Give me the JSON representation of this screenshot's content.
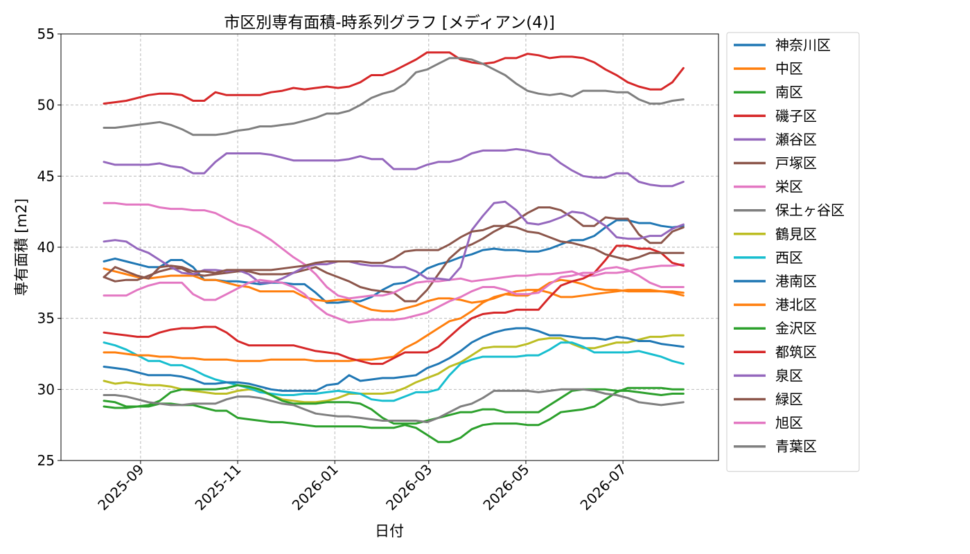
{
  "chart_data": {
    "type": "line",
    "title": "市区別専有面積-時系列グラフ [メディアン(4)]",
    "xlabel": "日付",
    "ylabel": "専有面積 [m2]",
    "ylim": [
      25,
      55
    ],
    "yticks": [
      25,
      30,
      35,
      40,
      45,
      50,
      55
    ],
    "xlim": [
      "2025-07-13",
      "2026-08-30"
    ],
    "xticks": [
      "2025-09",
      "2025-11",
      "2026-01",
      "2026-03",
      "2026-05",
      "2026-07"
    ],
    "grid": true,
    "legend_position": "outside-right",
    "x": [
      "2025-08-09",
      "2025-08-16",
      "2025-08-23",
      "2025-08-30",
      "2025-09-06",
      "2025-09-13",
      "2025-09-20",
      "2025-09-27",
      "2025-10-04",
      "2025-10-11",
      "2025-10-18",
      "2025-10-25",
      "2025-11-01",
      "2025-11-08",
      "2025-11-15",
      "2025-11-22",
      "2025-11-29",
      "2025-12-06",
      "2025-12-13",
      "2025-12-20",
      "2025-12-27",
      "2026-01-03",
      "2026-01-10",
      "2026-01-17",
      "2026-01-24",
      "2026-01-31",
      "2026-02-07",
      "2026-02-14",
      "2026-02-21",
      "2026-02-28",
      "2026-03-07",
      "2026-03-14",
      "2026-03-21",
      "2026-03-28",
      "2026-04-04",
      "2026-04-11",
      "2026-04-18",
      "2026-04-25",
      "2026-05-02",
      "2026-05-09",
      "2026-05-16",
      "2026-05-23",
      "2026-05-30",
      "2026-06-06",
      "2026-06-13",
      "2026-06-20",
      "2026-06-27",
      "2026-07-04",
      "2026-07-11",
      "2026-07-18",
      "2026-07-25",
      "2026-08-01",
      "2026-08-08"
    ],
    "series": [
      {
        "name": "神奈川区",
        "color": "#1f77b4",
        "values": [
          39.0,
          39.2,
          39.0,
          38.8,
          38.6,
          38.6,
          39.1,
          39.1,
          38.6,
          37.7,
          37.7,
          37.6,
          37.6,
          37.5,
          37.4,
          37.5,
          37.5,
          37.4,
          37.4,
          36.8,
          36.1,
          36.1,
          36.2,
          36.2,
          36.5,
          37.0,
          37.4,
          37.5,
          37.9,
          38.5,
          38.8,
          39.0,
          39.3,
          39.5,
          39.8,
          39.9,
          39.8,
          39.8,
          39.7,
          39.7,
          39.9,
          40.2,
          40.5,
          40.5,
          40.8,
          41.4,
          41.9,
          41.9,
          41.7,
          41.7,
          41.5,
          41.4,
          41.5
        ]
      },
      {
        "name": "中区",
        "color": "#ff7f0e",
        "values": [
          38.5,
          38.3,
          38.1,
          37.9,
          37.8,
          37.9,
          38.0,
          38.0,
          38.0,
          37.7,
          37.7,
          37.5,
          37.3,
          37.2,
          36.9,
          36.9,
          36.9,
          36.9,
          36.5,
          36.3,
          36.2,
          36.3,
          36.3,
          35.9,
          35.6,
          35.5,
          35.5,
          35.7,
          35.9,
          36.2,
          36.4,
          36.4,
          36.3,
          36.1,
          36.2,
          36.4,
          36.7,
          36.9,
          37.0,
          37.0,
          36.8,
          36.5,
          36.5,
          36.6,
          36.7,
          36.8,
          36.9,
          37.0,
          37.0,
          37.0,
          36.9,
          36.8,
          36.6
        ]
      },
      {
        "name": "南区",
        "color": "#2ca02c",
        "values": [
          29.2,
          29.1,
          28.8,
          28.8,
          28.8,
          29.0,
          29.0,
          28.9,
          28.9,
          28.7,
          28.5,
          28.5,
          28.0,
          27.9,
          27.8,
          27.7,
          27.7,
          27.6,
          27.5,
          27.4,
          27.4,
          27.4,
          27.4,
          27.4,
          27.3,
          27.3,
          27.3,
          27.5,
          27.3,
          26.8,
          26.3,
          26.3,
          26.6,
          27.2,
          27.5,
          27.6,
          27.6,
          27.6,
          27.5,
          27.5,
          27.9,
          28.4,
          28.5,
          28.6,
          28.8,
          29.3,
          29.8,
          30.1,
          30.1,
          30.1,
          30.1,
          30.0,
          30.0
        ]
      },
      {
        "name": "磯子区",
        "color": "#d62728",
        "values": [
          50.1,
          50.2,
          50.3,
          50.5,
          50.7,
          50.8,
          50.8,
          50.7,
          50.3,
          50.3,
          50.9,
          50.7,
          50.7,
          50.7,
          50.7,
          50.9,
          51.0,
          51.2,
          51.1,
          51.2,
          51.3,
          51.2,
          51.3,
          51.6,
          52.1,
          52.1,
          52.4,
          52.8,
          53.2,
          53.7,
          53.7,
          53.7,
          53.2,
          53.0,
          52.9,
          53.0,
          53.3,
          53.3,
          53.6,
          53.5,
          53.3,
          53.4,
          53.4,
          53.3,
          53.0,
          52.5,
          52.1,
          51.6,
          51.3,
          51.1,
          51.1,
          51.6,
          52.6
        ]
      },
      {
        "name": "瀬谷区",
        "color": "#9467bd",
        "values": [
          46.0,
          45.8,
          45.8,
          45.8,
          45.8,
          45.9,
          45.7,
          45.6,
          45.2,
          45.2,
          46.0,
          46.6,
          46.6,
          46.6,
          46.6,
          46.5,
          46.3,
          46.1,
          46.1,
          46.1,
          46.1,
          46.1,
          46.2,
          46.4,
          46.2,
          46.2,
          45.5,
          45.5,
          45.5,
          45.8,
          46.0,
          46.0,
          46.2,
          46.6,
          46.8,
          46.8,
          46.8,
          46.9,
          46.8,
          46.6,
          46.5,
          45.9,
          45.4,
          45.0,
          44.9,
          44.9,
          45.2,
          45.2,
          44.6,
          44.4,
          44.3,
          44.3,
          44.6
        ]
      },
      {
        "name": "戸塚区",
        "color": "#8c564b",
        "values": [
          37.9,
          37.6,
          37.7,
          37.7,
          38.0,
          38.3,
          38.5,
          38.5,
          38.1,
          38.0,
          38.1,
          38.2,
          38.3,
          38.3,
          38.1,
          38.1,
          38.1,
          38.2,
          38.4,
          38.6,
          38.2,
          37.9,
          37.6,
          37.2,
          37.0,
          36.9,
          36.8,
          36.2,
          36.2,
          37.0,
          38.1,
          39.2,
          39.9,
          40.2,
          40.6,
          41.1,
          41.5,
          41.9,
          42.4,
          42.8,
          42.8,
          42.6,
          42.1,
          41.5,
          41.5,
          42.1,
          42.0,
          42.0,
          40.9,
          40.3,
          40.3,
          41.1,
          41.4
        ]
      },
      {
        "name": "栄区",
        "color": "#e377c2",
        "values": [
          43.1,
          43.1,
          43.0,
          43.0,
          43.0,
          42.8,
          42.7,
          42.7,
          42.6,
          42.6,
          42.4,
          42.0,
          41.6,
          41.4,
          41.0,
          40.5,
          39.9,
          39.3,
          38.8,
          38.1,
          37.2,
          36.6,
          36.4,
          36.5,
          36.6,
          36.6,
          36.8,
          37.2,
          37.5,
          37.6,
          37.6,
          37.7,
          37.8,
          37.6,
          37.7,
          37.8,
          37.9,
          38.0,
          38.0,
          38.1,
          38.1,
          38.2,
          38.3,
          38.0,
          38.0,
          38.2,
          38.2,
          38.3,
          38.5,
          38.6,
          38.7,
          38.7,
          38.8
        ]
      },
      {
        "name": "保土ヶ谷区",
        "color": "#7f7f7f",
        "values": [
          48.4,
          48.4,
          48.5,
          48.6,
          48.7,
          48.8,
          48.6,
          48.3,
          47.9,
          47.9,
          47.9,
          48.0,
          48.2,
          48.3,
          48.5,
          48.5,
          48.6,
          48.7,
          48.9,
          49.1,
          49.4,
          49.4,
          49.6,
          50.0,
          50.5,
          50.8,
          51.0,
          51.5,
          52.3,
          52.5,
          52.9,
          53.3,
          53.3,
          53.2,
          52.9,
          52.5,
          52.1,
          51.5,
          51.0,
          50.8,
          50.7,
          50.8,
          50.6,
          51.0,
          51.0,
          51.0,
          50.9,
          50.9,
          50.4,
          50.1,
          50.1,
          50.3,
          50.4
        ]
      },
      {
        "name": "鶴見区",
        "color": "#bcbd22",
        "values": [
          30.6,
          30.4,
          30.5,
          30.4,
          30.3,
          30.3,
          30.2,
          30.0,
          29.9,
          29.8,
          29.7,
          29.7,
          29.9,
          30.0,
          29.9,
          29.6,
          29.3,
          29.2,
          29.1,
          29.1,
          29.2,
          29.4,
          29.7,
          29.7,
          29.7,
          29.7,
          29.8,
          30.1,
          30.5,
          30.8,
          31.1,
          31.6,
          31.9,
          32.4,
          32.9,
          33.0,
          33.0,
          33.0,
          33.2,
          33.5,
          33.6,
          33.6,
          33.2,
          32.9,
          32.9,
          33.1,
          33.3,
          33.3,
          33.5,
          33.7,
          33.7,
          33.8,
          33.8
        ]
      },
      {
        "name": "西区",
        "color": "#17becf",
        "values": [
          33.3,
          33.1,
          32.8,
          32.4,
          32.0,
          32.0,
          31.7,
          31.7,
          31.4,
          31.0,
          30.7,
          30.5,
          30.3,
          30.1,
          29.8,
          29.7,
          29.6,
          29.6,
          29.7,
          29.7,
          29.8,
          29.9,
          29.8,
          29.7,
          29.3,
          29.2,
          29.2,
          29.5,
          29.8,
          29.8,
          30.0,
          31.0,
          31.8,
          32.1,
          32.3,
          32.3,
          32.3,
          32.3,
          32.4,
          32.4,
          32.8,
          33.3,
          33.3,
          33.0,
          32.6,
          32.6,
          32.6,
          32.6,
          32.7,
          32.5,
          32.3,
          32.0,
          31.8
        ]
      },
      {
        "name": "港南区",
        "color": "#1f77b4",
        "values": [
          31.6,
          31.5,
          31.4,
          31.2,
          31.0,
          31.0,
          31.0,
          30.9,
          30.7,
          30.4,
          30.4,
          30.5,
          30.5,
          30.4,
          30.2,
          30.0,
          29.9,
          29.9,
          29.9,
          29.9,
          30.3,
          30.4,
          31.0,
          30.6,
          30.7,
          30.8,
          30.8,
          30.9,
          31.0,
          31.5,
          31.8,
          32.2,
          32.7,
          33.3,
          33.7,
          34.0,
          34.2,
          34.3,
          34.3,
          34.1,
          33.8,
          33.8,
          33.7,
          33.6,
          33.6,
          33.5,
          33.7,
          33.6,
          33.4,
          33.4,
          33.2,
          33.1,
          33.0
        ]
      },
      {
        "name": "港北区",
        "color": "#ff7f0e",
        "values": [
          32.6,
          32.6,
          32.5,
          32.4,
          32.4,
          32.3,
          32.3,
          32.2,
          32.2,
          32.1,
          32.1,
          32.1,
          32.0,
          32.0,
          32.0,
          32.1,
          32.1,
          32.1,
          32.1,
          32.0,
          32.0,
          32.0,
          32.0,
          32.1,
          32.1,
          32.2,
          32.3,
          32.9,
          33.3,
          33.8,
          34.3,
          34.8,
          35.0,
          35.5,
          36.1,
          36.5,
          36.7,
          36.6,
          36.6,
          37.0,
          37.5,
          37.7,
          37.6,
          37.4,
          37.1,
          37.0,
          37.0,
          36.9,
          36.9,
          36.9,
          36.9,
          36.9,
          36.8
        ]
      },
      {
        "name": "金沢区",
        "color": "#2ca02c",
        "values": [
          28.8,
          28.7,
          28.7,
          28.8,
          28.9,
          29.2,
          29.8,
          30.0,
          30.0,
          30.0,
          30.0,
          30.1,
          30.3,
          30.2,
          30.0,
          29.6,
          29.2,
          29.0,
          29.0,
          29.0,
          29.1,
          29.1,
          29.1,
          29.0,
          28.6,
          28.0,
          27.6,
          27.6,
          27.6,
          27.8,
          28.0,
          28.2,
          28.4,
          28.4,
          28.6,
          28.6,
          28.4,
          28.4,
          28.4,
          28.4,
          28.9,
          29.4,
          29.9,
          30.0,
          30.0,
          30.0,
          29.9,
          29.9,
          29.8,
          29.7,
          29.6,
          29.7,
          29.7
        ]
      },
      {
        "name": "都筑区",
        "color": "#d62728",
        "values": [
          34.0,
          33.9,
          33.8,
          33.7,
          33.7,
          34.0,
          34.2,
          34.3,
          34.3,
          34.4,
          34.4,
          34.0,
          33.4,
          33.1,
          33.1,
          33.1,
          33.1,
          33.1,
          32.9,
          32.7,
          32.6,
          32.5,
          32.2,
          32.0,
          31.8,
          31.8,
          32.2,
          32.6,
          32.6,
          32.6,
          33.0,
          33.7,
          34.4,
          35.0,
          35.3,
          35.4,
          35.4,
          35.6,
          35.6,
          35.6,
          36.5,
          37.3,
          37.6,
          37.8,
          38.2,
          39.1,
          40.1,
          40.1,
          39.9,
          39.9,
          39.6,
          38.9,
          38.7
        ]
      },
      {
        "name": "泉区",
        "color": "#9467bd",
        "values": [
          40.4,
          40.5,
          40.4,
          39.9,
          39.6,
          39.1,
          38.6,
          38.2,
          38.1,
          38.4,
          38.4,
          38.3,
          38.4,
          38.1,
          37.5,
          37.5,
          37.8,
          38.2,
          38.6,
          38.8,
          38.8,
          39.0,
          39.0,
          38.8,
          38.7,
          38.7,
          38.6,
          38.6,
          38.3,
          37.8,
          37.8,
          37.7,
          38.6,
          41.2,
          42.2,
          43.1,
          43.2,
          42.6,
          41.7,
          41.6,
          41.8,
          42.1,
          42.5,
          42.4,
          42.0,
          41.5,
          40.7,
          40.6,
          40.6,
          40.8,
          40.8,
          41.3,
          41.6
        ]
      },
      {
        "name": "緑区",
        "color": "#8c564b",
        "values": [
          37.9,
          38.6,
          38.3,
          38.0,
          37.8,
          38.6,
          38.7,
          38.6,
          38.3,
          38.3,
          38.2,
          38.4,
          38.4,
          38.4,
          38.4,
          38.4,
          38.5,
          38.6,
          38.7,
          38.9,
          39.0,
          39.0,
          39.0,
          39.0,
          38.9,
          38.9,
          39.2,
          39.7,
          39.8,
          39.8,
          39.8,
          40.2,
          40.7,
          41.1,
          41.2,
          41.5,
          41.5,
          41.4,
          41.1,
          41.0,
          40.7,
          40.4,
          40.3,
          40.1,
          39.9,
          39.5,
          39.3,
          39.1,
          39.3,
          39.6,
          39.6,
          39.6,
          39.6
        ]
      },
      {
        "name": "旭区",
        "color": "#e377c2",
        "values": [
          36.6,
          36.6,
          36.6,
          37.0,
          37.3,
          37.5,
          37.5,
          37.5,
          36.7,
          36.3,
          36.3,
          36.7,
          37.1,
          37.5,
          37.7,
          37.6,
          37.5,
          37.2,
          36.7,
          35.9,
          35.3,
          35.0,
          34.7,
          34.8,
          34.9,
          34.9,
          34.9,
          35.0,
          35.2,
          35.4,
          35.8,
          36.2,
          36.5,
          36.9,
          37.2,
          37.2,
          37.0,
          36.7,
          36.7,
          36.8,
          37.4,
          37.9,
          38.0,
          38.2,
          38.2,
          38.5,
          38.6,
          38.4,
          38.0,
          37.5,
          37.2,
          37.2,
          37.2
        ]
      },
      {
        "name": "青葉区",
        "color": "#7f7f7f",
        "values": [
          29.6,
          29.6,
          29.5,
          29.3,
          29.1,
          29.0,
          28.9,
          28.9,
          29.0,
          29.0,
          29.0,
          29.3,
          29.5,
          29.5,
          29.4,
          29.2,
          29.0,
          28.9,
          28.6,
          28.3,
          28.2,
          28.1,
          28.1,
          28.0,
          27.9,
          27.8,
          27.8,
          27.8,
          27.8,
          27.7,
          28.0,
          28.4,
          28.8,
          29.0,
          29.4,
          29.9,
          29.9,
          29.9,
          29.9,
          29.8,
          29.9,
          30.0,
          30.0,
          30.0,
          29.9,
          29.7,
          29.6,
          29.4,
          29.1,
          29.0,
          28.9,
          29.0,
          29.1
        ]
      }
    ]
  }
}
